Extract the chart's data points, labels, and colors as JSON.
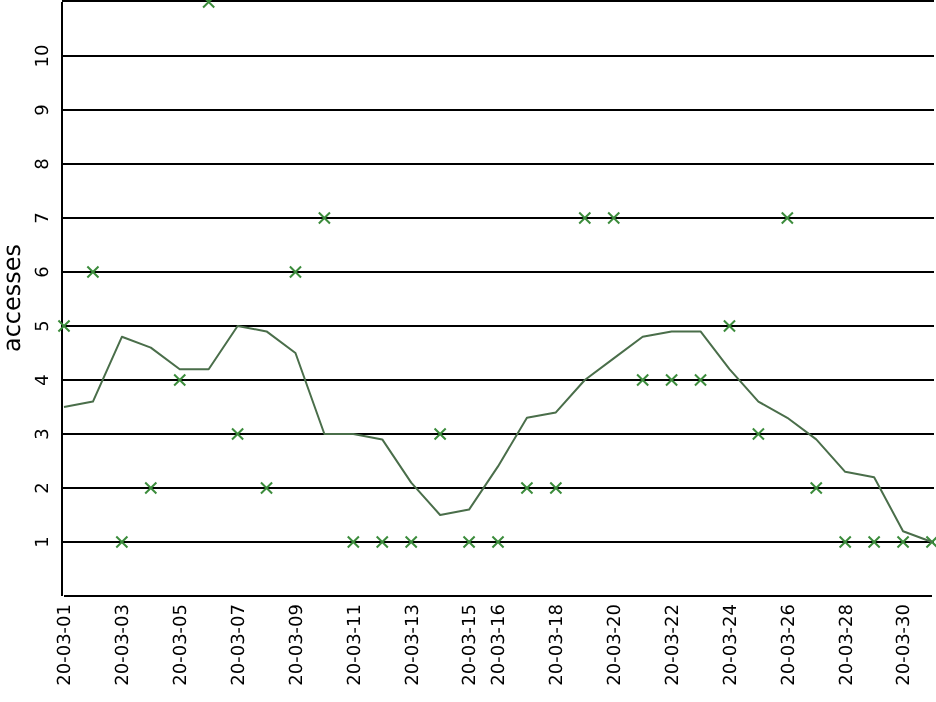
{
  "chart_data": {
    "type": "scatter",
    "ylabel": "accesses",
    "x": [
      "--03-01",
      "--03-02",
      "--03-03",
      "--03-04",
      "--03-05",
      "--03-06",
      "--03-07",
      "--03-08",
      "--03-09",
      "--03-10",
      "--03-11",
      "--03-12",
      "--03-13",
      "--03-14",
      "--03-15",
      "--03-16",
      "--03-17",
      "--03-18",
      "--03-19",
      "--03-20",
      "--03-21",
      "--03-22",
      "--03-23",
      "--03-24",
      "--03-25",
      "--03-26",
      "--03-27",
      "--03-28",
      "--03-29",
      "--03-30",
      "--03-31"
    ],
    "series": [
      {
        "color": "#3c8c3c",
        "marker": "cross",
        "values": [
          5,
          6,
          1,
          2,
          4,
          11,
          3,
          2,
          6,
          7,
          1,
          1,
          1,
          3,
          1,
          1,
          2,
          2,
          7,
          7,
          4,
          4,
          4,
          5,
          3,
          7,
          2,
          1,
          1,
          1,
          1
        ]
      },
      {
        "type": "line",
        "color": "#4a6e4a",
        "marker": "none",
        "line_style": "solid",
        "values": [
          3.5,
          3.6,
          4.8,
          4.6,
          4.2,
          4.2,
          5.0,
          4.9,
          4.5,
          3.0,
          3.0,
          2.9,
          2.1,
          1.5,
          1.6,
          2.4,
          3.3,
          3.4,
          4.0,
          4.4,
          4.8,
          4.9,
          4.9,
          4.2,
          3.6,
          3.3,
          2.9,
          2.3,
          2.2,
          1.2,
          1.0
        ]
      }
    ],
    "xlim": [
      "--03-01",
      "--03-31"
    ],
    "xticks": [
      {
        "value": "--03-01",
        "label": "20-03-01"
      },
      {
        "value": "--03-03",
        "label": "20-03-03"
      },
      {
        "value": "--03-05",
        "label": "20-03-05"
      },
      {
        "value": "--03-07",
        "label": "20-03-07"
      },
      {
        "value": "--03-09",
        "label": "20-03-09"
      },
      {
        "value": "--03-11",
        "label": "20-03-11"
      },
      {
        "value": "--03-13",
        "label": "20-03-13"
      },
      {
        "value": "--03-15",
        "label": "20-03-15"
      },
      {
        "value": "--03-16",
        "label": "20-03-16"
      },
      {
        "value": "--03-18",
        "label": "20-03-18"
      },
      {
        "value": "--03-20",
        "label": "20-03-20"
      },
      {
        "value": "--03-22",
        "label": "20-03-22"
      },
      {
        "value": "--03-24",
        "label": "20-03-24"
      },
      {
        "value": "--03-26",
        "label": "20-03-26"
      },
      {
        "value": "--03-28",
        "label": "20-03-28"
      },
      {
        "value": "--03-30",
        "label": "20-03-30"
      }
    ],
    "ylim": [
      0,
      11
    ],
    "yticks": [
      1,
      2,
      3,
      4,
      5,
      6,
      7,
      8,
      9,
      10
    ],
    "grid": "y"
  }
}
